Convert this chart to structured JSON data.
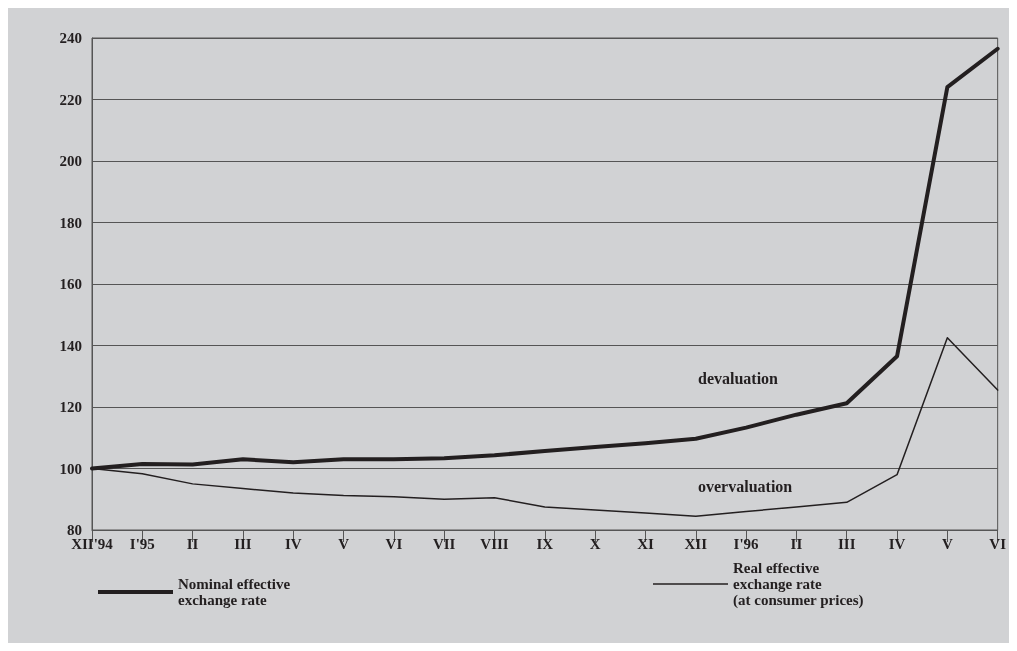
{
  "chart_data": {
    "type": "line",
    "categories": [
      "XII'94",
      "I'95",
      "II",
      "III",
      "IV",
      "V",
      "VI",
      "VII",
      "VIII",
      "IX",
      "X",
      "XI",
      "XII",
      "I'96",
      "II",
      "III",
      "IV",
      "V",
      "VI"
    ],
    "series": [
      {
        "name": "Nominal effective exchange rate",
        "color": "#231f20",
        "values": [
          100,
          101.5,
          101.3,
          103,
          102,
          103,
          103,
          103.3,
          104.3,
          105.7,
          107,
          108.2,
          109.7,
          113.3,
          117.5,
          121.2,
          136.5,
          224,
          236.5
        ]
      },
      {
        "name": "Real effective exchange rate (at consumer prices)",
        "color": "#231f20",
        "values": [
          100,
          98.3,
          95,
          93.5,
          92,
          91.2,
          90.8,
          90,
          90.5,
          87.5,
          86.5,
          85.5,
          84.5,
          86,
          87.5,
          89,
          98,
          142.5,
          125.5
        ]
      }
    ],
    "ylim": [
      80,
      240
    ],
    "yticks": [
      80,
      100,
      120,
      140,
      160,
      180,
      200,
      220,
      240
    ],
    "annotations": [
      "devaluation",
      "overvaluation"
    ],
    "grid": "y",
    "legend": "bottom",
    "marker": "none",
    "line_style": "solid"
  }
}
